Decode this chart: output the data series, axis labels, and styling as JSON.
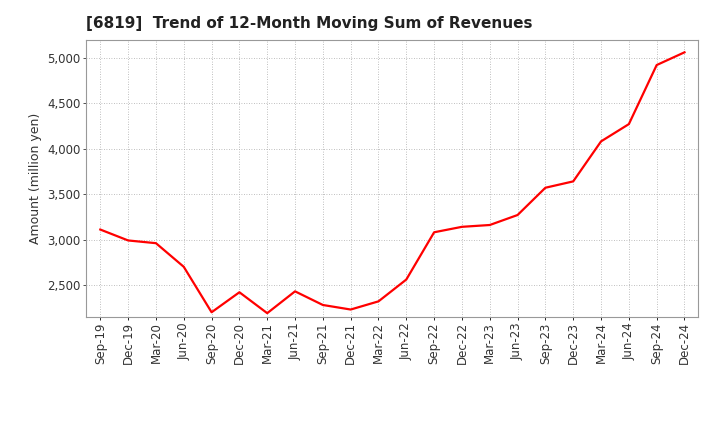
{
  "title": "[6819]  Trend of 12-Month Moving Sum of Revenues",
  "ylabel": "Amount (million yen)",
  "line_color": "#FF0000",
  "background_color": "#FFFFFF",
  "plot_bg_color": "#FFFFFF",
  "grid_color": "#AAAAAA",
  "ylim": [
    2150,
    5200
  ],
  "yticks": [
    2500,
    3000,
    3500,
    4000,
    4500,
    5000
  ],
  "x_labels": [
    "Sep-19",
    "Dec-19",
    "Mar-20",
    "Jun-20",
    "Sep-20",
    "Dec-20",
    "Mar-21",
    "Jun-21",
    "Sep-21",
    "Dec-21",
    "Mar-22",
    "Jun-22",
    "Sep-22",
    "Dec-22",
    "Mar-23",
    "Jun-23",
    "Sep-23",
    "Dec-23",
    "Mar-24",
    "Jun-24",
    "Sep-24",
    "Dec-24"
  ],
  "values": [
    3110,
    2990,
    2960,
    2700,
    2200,
    2420,
    2190,
    2430,
    2280,
    2230,
    2320,
    2560,
    3080,
    3140,
    3160,
    3270,
    3570,
    3640,
    4080,
    4270,
    4920,
    5060
  ],
  "title_fontsize": 11,
  "ylabel_fontsize": 9,
  "tick_fontsize": 8.5,
  "line_width": 1.6
}
